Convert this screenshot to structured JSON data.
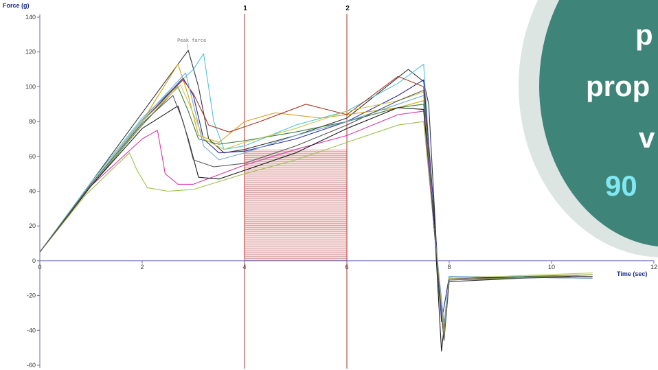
{
  "chart_data": {
    "type": "line",
    "ylabel": "Force (g)",
    "xlabel": "Time (sec)",
    "xlim": [
      0,
      12
    ],
    "ylim": [
      -60,
      140
    ],
    "x_ticks": [
      "0",
      "2",
      "4",
      "6",
      "8",
      "10",
      "12"
    ],
    "y_ticks": [
      "140",
      "120",
      "100",
      "80",
      "60",
      "40",
      "20",
      "0",
      "-20",
      "-40",
      "-60"
    ],
    "markers": [
      {
        "label": "1",
        "x": 4
      },
      {
        "label": "2",
        "x": 6
      }
    ],
    "shaded_region": {
      "x_start": 4,
      "x_end": 6,
      "y_start": 0
    },
    "annotation": {
      "text": "Peak force",
      "x": 2.9,
      "y": 121
    },
    "grid": false,
    "series": [
      {
        "color": "#333333",
        "values": [
          [
            0,
            5
          ],
          [
            1,
            45
          ],
          [
            2,
            85
          ],
          [
            2.9,
            121
          ],
          [
            3.1,
            100
          ],
          [
            3.3,
            70
          ],
          [
            3.6,
            62
          ],
          [
            4,
            64
          ],
          [
            5,
            72
          ],
          [
            6,
            82
          ],
          [
            7.2,
            110
          ],
          [
            7.5,
            103
          ],
          [
            7.6,
            90
          ],
          [
            7.8,
            -18
          ],
          [
            7.9,
            -45
          ],
          [
            8,
            -12
          ],
          [
            10.8,
            -8
          ]
        ]
      },
      {
        "color": "#4fc3d9",
        "values": [
          [
            0,
            5
          ],
          [
            1,
            45
          ],
          [
            2,
            82
          ],
          [
            3,
            110
          ],
          [
            3.2,
            119
          ],
          [
            3.4,
            80
          ],
          [
            3.6,
            64
          ],
          [
            4,
            66
          ],
          [
            5,
            78
          ],
          [
            6,
            86
          ],
          [
            7,
            102
          ],
          [
            7.5,
            113
          ],
          [
            7.7,
            20
          ],
          [
            7.9,
            -40
          ],
          [
            8,
            -10
          ],
          [
            10.8,
            -9
          ]
        ]
      },
      {
        "color": "#2b2b99",
        "values": [
          [
            0,
            5
          ],
          [
            1,
            44
          ],
          [
            2,
            80
          ],
          [
            2.8,
            105
          ],
          [
            3.0,
            95
          ],
          [
            3.2,
            70
          ],
          [
            3.5,
            62
          ],
          [
            4,
            63
          ],
          [
            5,
            70
          ],
          [
            6,
            80
          ],
          [
            7,
            95
          ],
          [
            7.5,
            104
          ],
          [
            7.7,
            30
          ],
          [
            7.85,
            -35
          ],
          [
            8,
            -9
          ],
          [
            10.8,
            -10
          ]
        ]
      },
      {
        "color": "#d4a017",
        "values": [
          [
            0,
            5
          ],
          [
            1,
            44
          ],
          [
            2,
            80
          ],
          [
            2.7,
            113
          ],
          [
            2.9,
            95
          ],
          [
            3.1,
            72
          ],
          [
            3.5,
            68
          ],
          [
            4,
            80
          ],
          [
            4.6,
            85
          ],
          [
            5.5,
            82
          ],
          [
            6.5,
            86
          ],
          [
            7,
            88
          ],
          [
            7.5,
            92
          ],
          [
            7.7,
            20
          ],
          [
            7.9,
            -44
          ],
          [
            8,
            -11
          ],
          [
            10.8,
            -8
          ]
        ]
      },
      {
        "color": "#a63a28",
        "values": [
          [
            0,
            5
          ],
          [
            1,
            44
          ],
          [
            2,
            80
          ],
          [
            2.8,
            104
          ],
          [
            3,
            96
          ],
          [
            3.3,
            78
          ],
          [
            3.7,
            74
          ],
          [
            4.3,
            80
          ],
          [
            5.2,
            90
          ],
          [
            6,
            84
          ],
          [
            7,
            106
          ],
          [
            7.5,
            100
          ],
          [
            7.7,
            20
          ],
          [
            7.9,
            -38
          ],
          [
            8,
            -10
          ],
          [
            10.8,
            -9
          ]
        ]
      },
      {
        "color": "#3a7d3a",
        "values": [
          [
            0,
            5
          ],
          [
            1,
            43
          ],
          [
            2,
            78
          ],
          [
            2.7,
            100
          ],
          [
            2.9,
            86
          ],
          [
            3.1,
            70
          ],
          [
            3.5,
            67
          ],
          [
            4,
            69
          ],
          [
            5,
            74
          ],
          [
            6,
            80
          ],
          [
            7,
            88
          ],
          [
            7.5,
            90
          ],
          [
            7.7,
            20
          ],
          [
            7.9,
            -42
          ],
          [
            8,
            -10
          ],
          [
            10.8,
            -8
          ]
        ]
      },
      {
        "color": "#9ac24a",
        "values": [
          [
            0,
            5
          ],
          [
            0.9,
            38
          ],
          [
            1.75,
            62
          ],
          [
            1.9,
            52
          ],
          [
            2.1,
            42
          ],
          [
            2.5,
            40
          ],
          [
            3,
            41
          ],
          [
            4,
            50
          ],
          [
            5,
            58
          ],
          [
            6,
            68
          ],
          [
            7,
            78
          ],
          [
            7.5,
            80
          ],
          [
            7.7,
            20
          ],
          [
            7.9,
            -44
          ],
          [
            8,
            -11
          ],
          [
            10.8,
            -8
          ]
        ]
      },
      {
        "color": "#d336a8",
        "values": [
          [
            0,
            5
          ],
          [
            1,
            43
          ],
          [
            2,
            70
          ],
          [
            2.3,
            75
          ],
          [
            2.45,
            50
          ],
          [
            2.7,
            44
          ],
          [
            3,
            44
          ],
          [
            4,
            55
          ],
          [
            5,
            64
          ],
          [
            6,
            72
          ],
          [
            7,
            84
          ],
          [
            7.5,
            86
          ],
          [
            7.7,
            20
          ],
          [
            7.9,
            -40
          ],
          [
            8,
            -10
          ],
          [
            10.8,
            -9
          ]
        ]
      },
      {
        "color": "#1a1a1a",
        "values": [
          [
            0,
            5
          ],
          [
            1,
            43
          ],
          [
            2,
            76
          ],
          [
            2.7,
            89
          ],
          [
            2.9,
            70
          ],
          [
            3.1,
            48
          ],
          [
            3.5,
            47
          ],
          [
            4,
            52
          ],
          [
            5,
            62
          ],
          [
            6,
            76
          ],
          [
            7,
            88
          ],
          [
            7.5,
            87
          ],
          [
            7.7,
            25
          ],
          [
            7.85,
            -52
          ],
          [
            8,
            -10
          ],
          [
            10.8,
            -9
          ]
        ]
      },
      {
        "color": "#6fa8d6",
        "values": [
          [
            0,
            5
          ],
          [
            1,
            44
          ],
          [
            2,
            81
          ],
          [
            2.85,
            108
          ],
          [
            3.0,
            90
          ],
          [
            3.2,
            66
          ],
          [
            3.5,
            58
          ],
          [
            4,
            62
          ],
          [
            5,
            72
          ],
          [
            6,
            80
          ],
          [
            7,
            90
          ],
          [
            7.5,
            95
          ],
          [
            7.7,
            20
          ],
          [
            7.9,
            -36
          ],
          [
            8,
            -9
          ],
          [
            10.8,
            -10
          ]
        ]
      },
      {
        "color": "#c9c951",
        "values": [
          [
            0,
            5
          ],
          [
            1,
            44
          ],
          [
            2,
            80
          ],
          [
            2.75,
            101
          ],
          [
            2.95,
            88
          ],
          [
            3.2,
            70
          ],
          [
            3.6,
            64
          ],
          [
            4,
            68
          ],
          [
            5,
            76
          ],
          [
            6,
            86
          ],
          [
            7,
            92
          ],
          [
            7.5,
            97
          ],
          [
            7.7,
            20
          ],
          [
            7.9,
            -42
          ],
          [
            8,
            -10
          ],
          [
            10.8,
            -7
          ]
        ]
      },
      {
        "color": "#555555",
        "values": [
          [
            0,
            5
          ],
          [
            1,
            44
          ],
          [
            2,
            79
          ],
          [
            2.6,
            95
          ],
          [
            2.8,
            80
          ],
          [
            3.0,
            58
          ],
          [
            3.4,
            54
          ],
          [
            4,
            56
          ],
          [
            5,
            66
          ],
          [
            6,
            78
          ],
          [
            7,
            92
          ],
          [
            7.5,
            98
          ],
          [
            7.7,
            20
          ],
          [
            7.9,
            -46
          ],
          [
            8,
            -11
          ],
          [
            10.8,
            -9
          ]
        ]
      }
    ]
  }
}
